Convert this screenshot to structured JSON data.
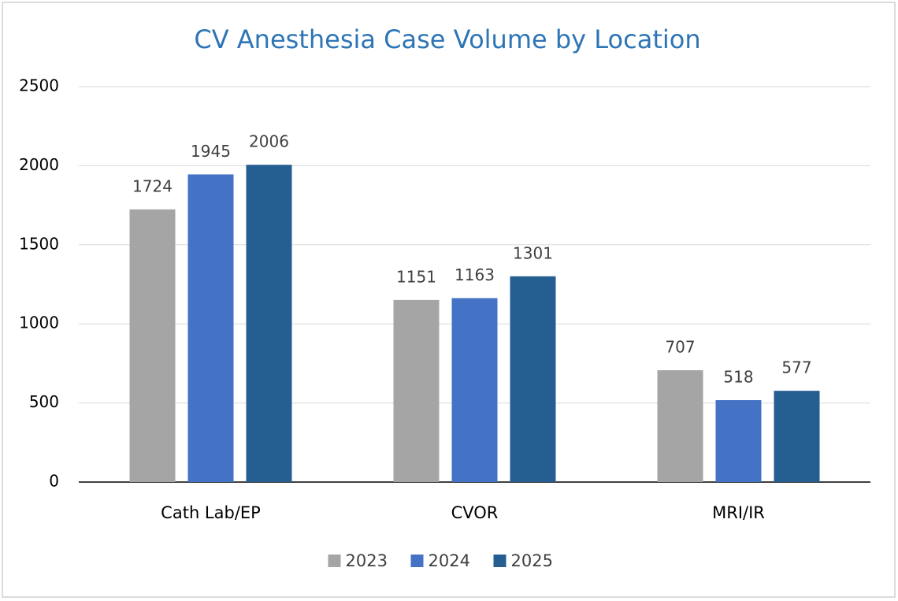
{
  "chart_data": {
    "type": "bar",
    "title": "CV Anesthesia Case Volume by Location",
    "categories": [
      "Cath Lab/EP",
      "CVOR",
      "MRI/IR"
    ],
    "series": [
      {
        "name": "2023",
        "color": "#a5a5a5",
        "values": [
          1724,
          1151,
          707
        ]
      },
      {
        "name": "2024",
        "color": "#4472c4",
        "values": [
          1945,
          1163,
          518
        ]
      },
      {
        "name": "2025",
        "color": "#255e91",
        "values": [
          2006,
          1301,
          577
        ]
      }
    ],
    "ylim": [
      0,
      2500
    ],
    "yticks": [
      0,
      500,
      1000,
      1500,
      2000,
      2500
    ],
    "grid": true,
    "legend": "bottom"
  }
}
